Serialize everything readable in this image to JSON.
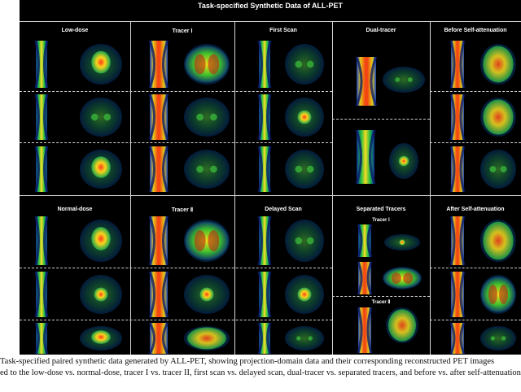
{
  "figure": {
    "title": "Task-specified Synthetic Data of ALL-PET",
    "top_panels": [
      "Low-dose",
      "Tracer Ⅰ",
      "First Scan",
      "Dual-tracer",
      "Before Self-attenuation"
    ],
    "bottom_panels": [
      "Normal-dose",
      "Tracer Ⅱ",
      "Delayed Scan",
      "Separated Tracers",
      "After Self-attenuation"
    ],
    "sub_labels": [
      "Tracer Ⅰ",
      "Tracer Ⅱ"
    ]
  },
  "caption": {
    "line1": "Task-specified paired synthetic data generated by ALL-PET, showing projection-domain data and their corresponding reconstructed PET images",
    "line2": "ed to the low-dose vs. normal-dose, tracer I vs. tracer II, first scan vs. delayed scan, dual-tracer vs. separated tracers, and before vs. after self-attenuation"
  }
}
